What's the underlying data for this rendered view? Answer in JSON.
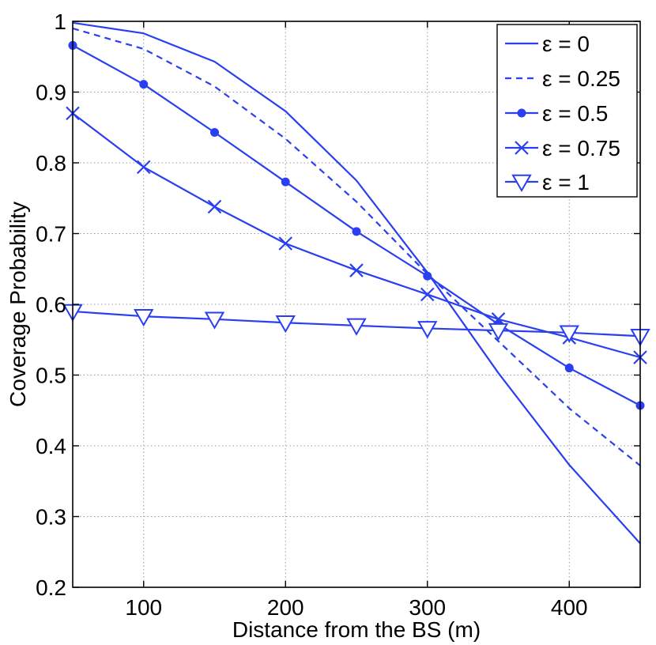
{
  "chart_data": {
    "type": "line",
    "title": "",
    "xlabel": "Distance from the BS (m)",
    "ylabel": "Coverage Probability",
    "xlim": [
      50,
      450
    ],
    "ylim": [
      0.2,
      1.0
    ],
    "xticks": [
      100,
      200,
      300,
      400
    ],
    "yticks": [
      0.2,
      0.3,
      0.4,
      0.5,
      0.6,
      0.7,
      0.8,
      0.9,
      1.0
    ],
    "xtick_labels": [
      "100",
      "200",
      "300",
      "400"
    ],
    "ytick_labels": [
      "0.2",
      "0.3",
      "0.4",
      "0.5",
      "0.6",
      "0.7",
      "0.8",
      "0.9",
      "1"
    ],
    "grid": true,
    "legend_position": "top-right",
    "color": "#2a3ff0",
    "series": [
      {
        "name": "ε = 0",
        "line": "solid",
        "marker": "none",
        "x": [
          50,
          100,
          150,
          200,
          250,
          300,
          350,
          400,
          450
        ],
        "values": [
          0.998,
          0.983,
          0.943,
          0.873,
          0.775,
          0.645,
          0.503,
          0.373,
          0.262
        ]
      },
      {
        "name": "ε = 0.25",
        "line": "dashed",
        "marker": "none",
        "x": [
          50,
          100,
          150,
          200,
          250,
          300,
          350,
          400,
          450
        ],
        "values": [
          0.99,
          0.961,
          0.908,
          0.834,
          0.745,
          0.643,
          0.548,
          0.453,
          0.372
        ]
      },
      {
        "name": "ε = 0.5",
        "line": "solid",
        "marker": "dot",
        "x": [
          50,
          100,
          150,
          200,
          250,
          300,
          350,
          400,
          450
        ],
        "values": [
          0.966,
          0.911,
          0.843,
          0.773,
          0.703,
          0.64,
          0.572,
          0.51,
          0.457
        ]
      },
      {
        "name": "ε = 0.75",
        "line": "solid",
        "marker": "x",
        "x": [
          50,
          100,
          150,
          200,
          250,
          300,
          350,
          400,
          450
        ],
        "values": [
          0.87,
          0.794,
          0.738,
          0.686,
          0.648,
          0.614,
          0.579,
          0.553,
          0.525
        ]
      },
      {
        "name": "ε = 1",
        "line": "solid",
        "marker": "triangle-down",
        "x": [
          50,
          100,
          150,
          200,
          250,
          300,
          350,
          400,
          450
        ],
        "values": [
          0.59,
          0.583,
          0.579,
          0.574,
          0.57,
          0.566,
          0.563,
          0.56,
          0.555
        ]
      }
    ]
  }
}
